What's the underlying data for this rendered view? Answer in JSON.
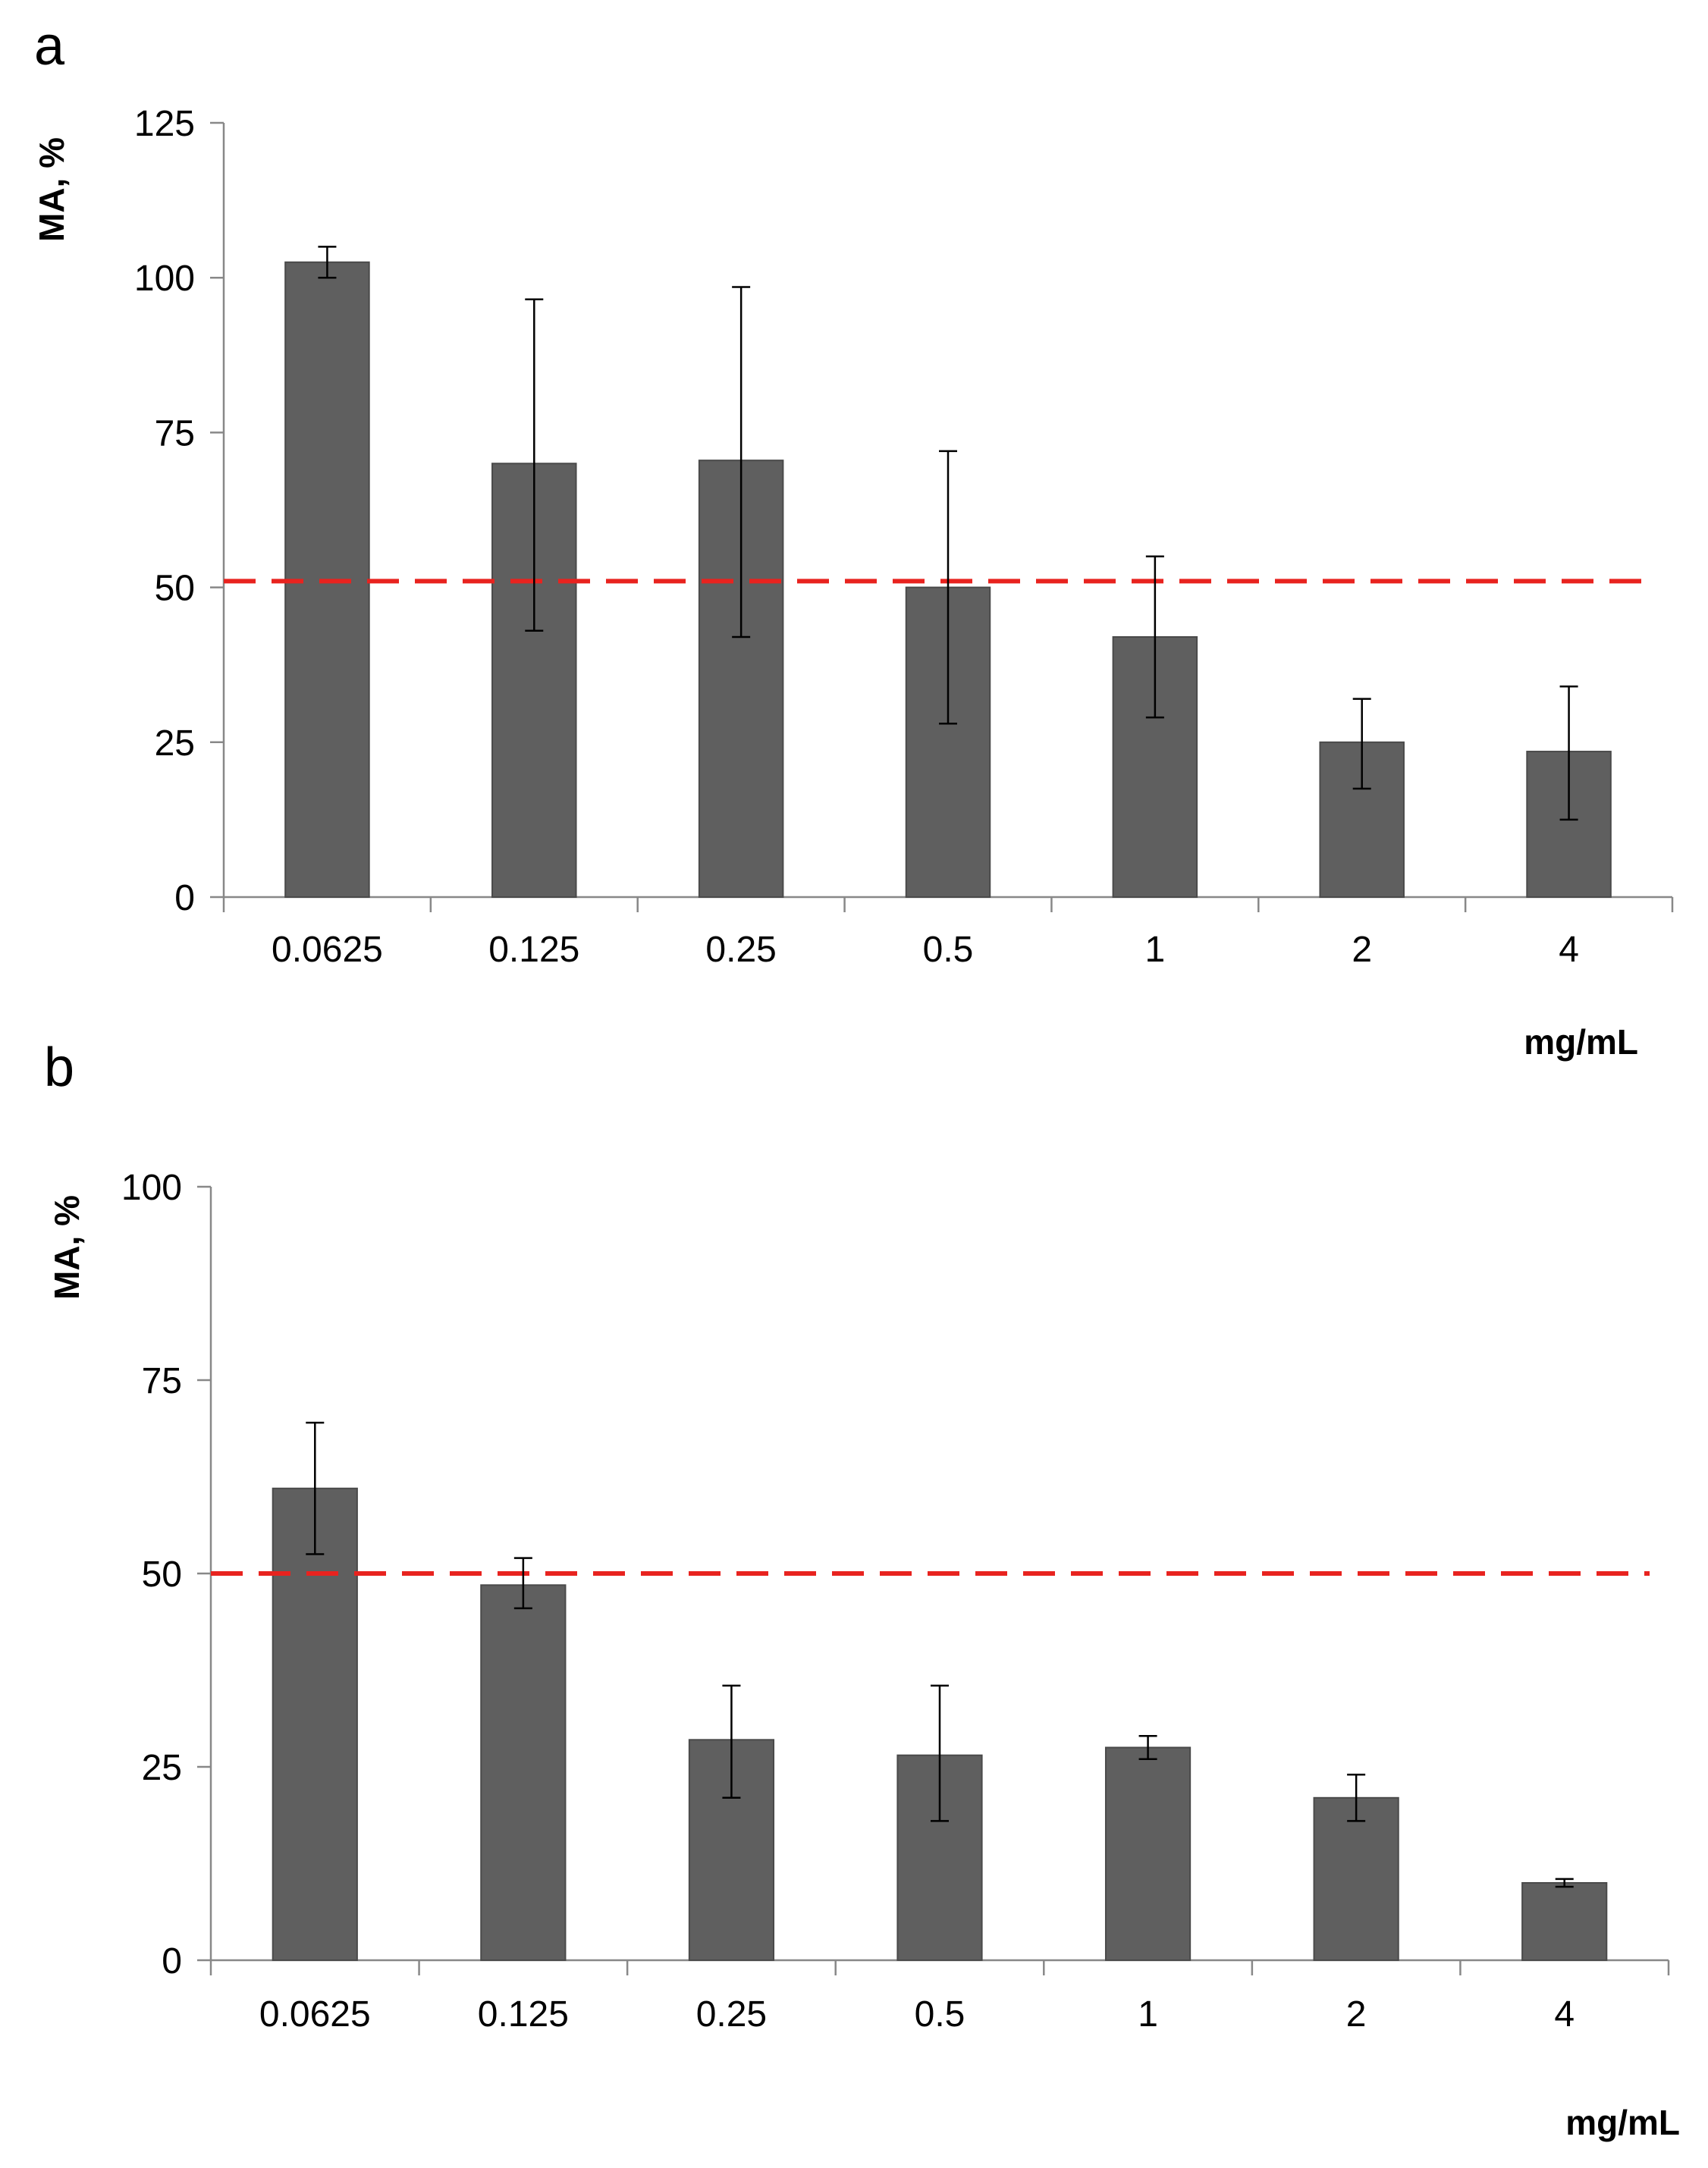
{
  "colors": {
    "bar": "#5f5f5f",
    "bar_stroke": "#4a4a4a",
    "axis": "#888888",
    "error_bar": "#000000",
    "reference_line": "#e8231f"
  },
  "chart_data": [
    {
      "type": "bar",
      "panel": "a",
      "ylabel": "MA, %",
      "xlabel": "mg/mL",
      "categories": [
        "0.0625",
        "0.125",
        "0.25",
        "0.5",
        "1",
        "2",
        "4"
      ],
      "values": [
        102.5,
        70,
        70.5,
        50,
        42,
        25,
        23.5
      ],
      "error_low": [
        100,
        43,
        42,
        28,
        29,
        17.5,
        12.5
      ],
      "error_high": [
        105,
        96.5,
        98.5,
        72,
        55,
        32,
        34
      ],
      "ylim": [
        0,
        125
      ],
      "yticks": [
        0,
        25,
        50,
        75,
        100,
        125
      ],
      "ytick_labels": [
        "0",
        "25",
        "50",
        "75",
        "100",
        "125"
      ],
      "reference_line": 51
    },
    {
      "type": "bar",
      "panel": "b",
      "ylabel": "MA, %",
      "xlabel": "mg/mL",
      "categories": [
        "0.0625",
        "0.125",
        "0.25",
        "0.5",
        "1",
        "2",
        "4"
      ],
      "values": [
        61,
        48.5,
        28.5,
        26.5,
        27.5,
        21,
        10
      ],
      "error_low": [
        52.5,
        45.5,
        21,
        18,
        26,
        18,
        9.5
      ],
      "error_high": [
        69.5,
        52,
        35.5,
        35.5,
        29,
        24,
        10.5
      ],
      "ylim": [
        0,
        100
      ],
      "yticks": [
        0,
        25,
        50,
        75,
        100
      ],
      "ytick_labels": [
        "0",
        "25",
        "50",
        "75",
        "100"
      ],
      "reference_line": 50
    }
  ]
}
